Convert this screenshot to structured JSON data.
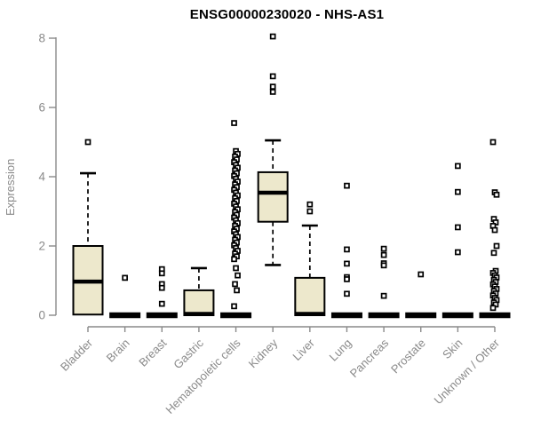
{
  "chart_data": {
    "type": "boxplot",
    "title": "ENSG00000230020 - NHS-AS1",
    "ylabel": "Expression",
    "xlabel": "",
    "ylim": [
      0,
      8.3
    ],
    "yticks": [
      0,
      2,
      4,
      6,
      8
    ],
    "grid": false,
    "legend": "none",
    "colors": {
      "box_fill": "#ede8cc",
      "box_stroke": "#000000",
      "axis": "#8a8a8a",
      "tick_text": "#8a8a8a",
      "title_text": "#000000",
      "background": "#ffffff"
    },
    "categories": [
      "Bladder",
      "Brain",
      "Breast",
      "Gastric",
      "Hematopoietic cells",
      "Kidney",
      "Liver",
      "Lung",
      "Pancreas",
      "Prostate",
      "Skin",
      "Unknown / Other"
    ],
    "boxes": [
      {
        "category": "Bladder",
        "min": 0.02,
        "q1": 0.02,
        "median": 0.97,
        "q3": 2.0,
        "max": 4.1,
        "outliers": [
          5.0
        ]
      },
      {
        "category": "Brain",
        "min": 0,
        "q1": 0,
        "median": 0,
        "q3": 0,
        "max": 0,
        "outliers": [
          1.08
        ]
      },
      {
        "category": "Breast",
        "min": 0,
        "q1": 0,
        "median": 0,
        "q3": 0,
        "max": 0,
        "outliers": [
          1.33,
          1.21,
          0.9,
          0.79,
          0.33
        ]
      },
      {
        "category": "Gastric",
        "min": 0,
        "q1": 0,
        "median": 0.04,
        "q3": 0.72,
        "max": 1.36,
        "outliers": []
      },
      {
        "category": "Hematopoietic cells",
        "min": 0,
        "q1": 0,
        "median": 0,
        "q3": 0,
        "max": 0,
        "outliers": [
          5.55,
          4.74,
          4.66,
          4.58,
          4.5,
          4.42,
          4.34,
          4.26,
          4.18,
          4.1,
          4.02,
          3.94,
          3.86,
          3.78,
          3.7,
          3.62,
          3.54,
          3.46,
          3.38,
          3.3,
          3.22,
          3.14,
          3.06,
          2.98,
          2.9,
          2.82,
          2.74,
          2.66,
          2.58,
          2.5,
          2.42,
          2.34,
          2.26,
          2.18,
          2.1,
          2.02,
          1.94,
          1.86,
          1.78,
          1.7,
          1.62,
          1.36,
          1.15,
          0.9,
          0.72,
          0.26
        ]
      },
      {
        "category": "Kidney",
        "min": 1.45,
        "q1": 2.7,
        "median": 3.54,
        "q3": 4.13,
        "max": 5.05,
        "outliers": [
          8.05,
          6.9,
          6.6,
          6.45
        ]
      },
      {
        "category": "Liver",
        "min": 0,
        "q1": 0,
        "median": 0.04,
        "q3": 1.08,
        "max": 2.59,
        "outliers": [
          3.2,
          3.0
        ]
      },
      {
        "category": "Lung",
        "min": 0,
        "q1": 0,
        "median": 0,
        "q3": 0,
        "max": 0,
        "outliers": [
          3.74,
          1.9,
          1.49,
          1.1,
          1.04,
          0.62
        ]
      },
      {
        "category": "Pancreas",
        "min": 0,
        "q1": 0,
        "median": 0,
        "q3": 0,
        "max": 0,
        "outliers": [
          1.92,
          1.74,
          1.5,
          1.44,
          0.56
        ]
      },
      {
        "category": "Prostate",
        "min": 0,
        "q1": 0,
        "median": 0,
        "q3": 0,
        "max": 0,
        "outliers": [
          1.18
        ]
      },
      {
        "category": "Skin",
        "min": 0,
        "q1": 0,
        "median": 0,
        "q3": 0,
        "max": 0,
        "outliers": [
          4.31,
          3.56,
          2.54,
          1.82
        ]
      },
      {
        "category": "Unknown / Other",
        "min": 0,
        "q1": 0,
        "median": 0,
        "q3": 0,
        "max": 0,
        "outliers": [
          5.0,
          3.55,
          3.48,
          2.78,
          2.68,
          2.58,
          2.46,
          2.0,
          1.8,
          1.28,
          1.22,
          1.15,
          1.09,
          1.02,
          0.96,
          0.89,
          0.83,
          0.76,
          0.7,
          0.63,
          0.57,
          0.5,
          0.44,
          0.37,
          0.31,
          0.21
        ]
      }
    ]
  }
}
